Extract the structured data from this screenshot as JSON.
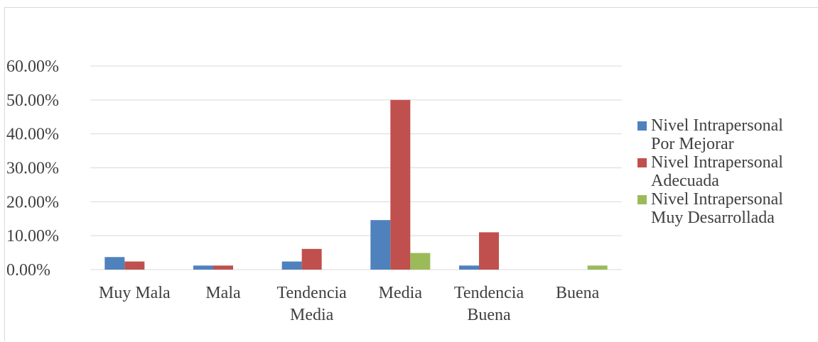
{
  "chart_data": {
    "type": "bar",
    "categories": [
      [
        "Muy Mala"
      ],
      [
        "Mala"
      ],
      [
        "Tendencia",
        "Media"
      ],
      [
        "Media"
      ],
      [
        "Tendencia",
        "Buena"
      ],
      [
        "Buena"
      ]
    ],
    "series": [
      {
        "name": [
          "Nivel Intrapersonal",
          "Por Mejorar"
        ],
        "color": "#4f81bd",
        "values": [
          3.7,
          1.2,
          2.4,
          14.6,
          1.2,
          0
        ]
      },
      {
        "name": [
          "Nivel Intrapersonal",
          "Adecuada"
        ],
        "color": "#c0504d",
        "values": [
          2.4,
          1.2,
          6.1,
          50.0,
          11.0,
          0
        ]
      },
      {
        "name": [
          "Nivel Intrapersonal",
          "Muy Desarrollada"
        ],
        "color": "#9bbb59",
        "values": [
          0,
          0,
          0,
          4.9,
          0,
          1.2
        ]
      }
    ],
    "y_ticks": [
      "0.00%",
      "10.00%",
      "20.00%",
      "30.00%",
      "40.00%",
      "50.00%",
      "60.00%"
    ],
    "ylim": [
      0,
      60
    ],
    "grid": true,
    "legend_position": "right",
    "title": "",
    "xlabel": "",
    "ylabel": ""
  }
}
